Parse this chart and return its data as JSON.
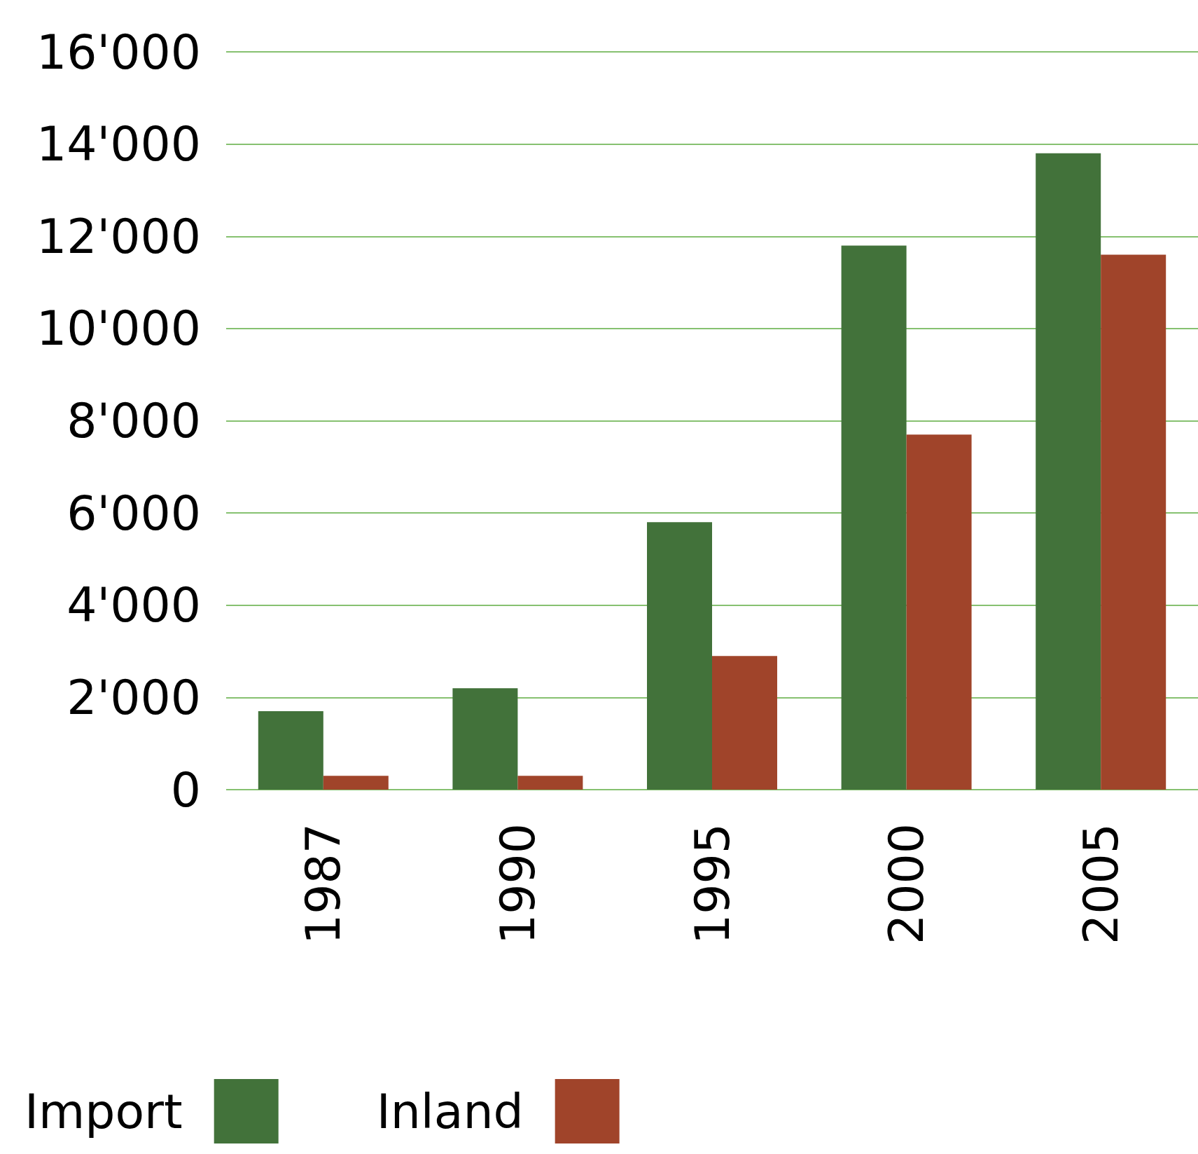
{
  "chart_data": {
    "type": "bar",
    "categories": [
      "1987",
      "1990",
      "1995",
      "2000",
      "2005"
    ],
    "series": [
      {
        "name": "Import",
        "color": "#42723a",
        "values": [
          1700,
          2200,
          5800,
          11800,
          13800
        ]
      },
      {
        "name": "Inland",
        "color": "#a0442a",
        "values": [
          300,
          300,
          2900,
          7700,
          11600
        ]
      }
    ],
    "ylim": [
      0,
      16000
    ],
    "yticks": [
      0,
      {
        "value": 2000,
        "label": "2'000"
      },
      {
        "value": 4000,
        "label": "4'000"
      },
      {
        "value": 6000,
        "label": "6'000"
      },
      {
        "value": 8000,
        "label": "8'000"
      },
      {
        "value": 10000,
        "label": "10'000"
      },
      {
        "value": 12000,
        "label": "12'000"
      },
      {
        "value": 14000,
        "label": "14'000"
      },
      {
        "value": 16000,
        "label": "16'000"
      }
    ],
    "grid": "y",
    "legend": "bottom left"
  }
}
